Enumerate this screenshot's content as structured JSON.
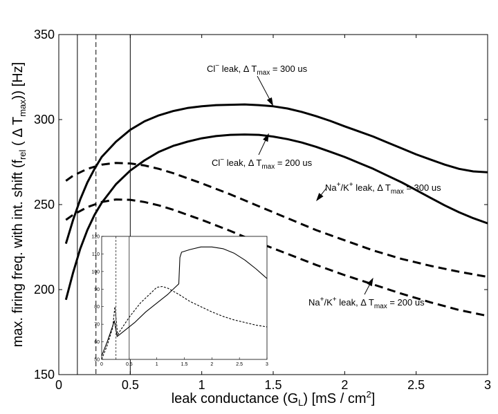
{
  "chart_data": {
    "type": "line",
    "xlabel": "leak conductance (G_L) [mS / cm^2]",
    "ylabel": "max. firing freq. with int. shift (f_rel ( Δ T_max)) [Hz]",
    "xlim": [
      0,
      3
    ],
    "ylim": [
      150,
      350
    ],
    "x_ticks": [
      "0",
      "0.5",
      "1",
      "1.5",
      "2",
      "2.5",
      "3"
    ],
    "y_ticks": [
      "150",
      "200",
      "250",
      "300",
      "350"
    ],
    "vertical_markers": [
      {
        "x": 0.13,
        "style": "solid"
      },
      {
        "x": 0.26,
        "style": "dashed"
      },
      {
        "x": 0.5,
        "style": "solid"
      }
    ],
    "series": [
      {
        "name": "Cl- leak, ΔT_max = 300 us",
        "style": "solid",
        "x": [
          0.05,
          0.1,
          0.15,
          0.2,
          0.25,
          0.3,
          0.4,
          0.5,
          0.6,
          0.7,
          0.8,
          0.9,
          1.0,
          1.1,
          1.2,
          1.3,
          1.4,
          1.5,
          1.6,
          1.7,
          1.8,
          1.9,
          2.0,
          2.1,
          2.2,
          2.3,
          2.4,
          2.5,
          2.6,
          2.7,
          2.8,
          2.9,
          3.0
        ],
        "y": [
          227,
          241,
          253,
          263,
          271,
          278,
          287,
          294,
          299,
          302.5,
          305,
          306.8,
          307.8,
          308.5,
          308.7,
          308.9,
          308.5,
          307.8,
          306.5,
          304.5,
          302,
          299.2,
          296,
          293,
          290,
          286.5,
          283,
          279.5,
          276.5,
          273.5,
          271,
          269.5,
          269
        ]
      },
      {
        "name": "Cl- leak, ΔT_max = 200 us",
        "style": "solid",
        "x": [
          0.05,
          0.1,
          0.15,
          0.2,
          0.25,
          0.3,
          0.4,
          0.5,
          0.6,
          0.7,
          0.8,
          0.9,
          1.0,
          1.1,
          1.2,
          1.3,
          1.4,
          1.5,
          1.6,
          1.7,
          1.8,
          1.9,
          2.0,
          2.1,
          2.2,
          2.3,
          2.4,
          2.5,
          2.6,
          2.7,
          2.8,
          2.9,
          3.0
        ],
        "y": [
          194,
          210,
          224,
          235,
          244,
          251,
          262,
          270,
          276,
          281,
          284.5,
          287,
          289,
          290.3,
          291,
          291.2,
          291,
          290,
          288.5,
          286.5,
          284,
          281,
          278,
          274.5,
          271,
          267,
          263,
          258.5,
          254,
          249.5,
          245.5,
          242,
          239
        ]
      },
      {
        "name": "Na+/K+ leak, ΔT_max = 300 us",
        "style": "dashed",
        "x": [
          0.05,
          0.1,
          0.2,
          0.3,
          0.4,
          0.5,
          0.6,
          0.7,
          0.8,
          0.9,
          1.0,
          1.2,
          1.4,
          1.6,
          1.8,
          2.0,
          2.2,
          2.4,
          2.6,
          2.8,
          3.0
        ],
        "y": [
          264,
          267,
          271,
          273.5,
          274.5,
          274.2,
          273,
          271,
          268.5,
          265.5,
          262.5,
          256,
          249,
          242,
          235,
          229,
          223,
          218,
          214,
          210.5,
          207.5
        ]
      },
      {
        "name": "Na+/K+ leak, ΔT_max = 200 us",
        "style": "dashed",
        "x": [
          0.05,
          0.1,
          0.2,
          0.3,
          0.4,
          0.5,
          0.6,
          0.7,
          0.8,
          0.9,
          1.0,
          1.2,
          1.4,
          1.6,
          1.8,
          2.0,
          2.2,
          2.4,
          2.6,
          2.8,
          3.0
        ],
        "y": [
          241,
          244,
          248.5,
          251.5,
          253,
          252.8,
          251.5,
          249.5,
          247,
          244,
          241,
          234.5,
          227.5,
          221,
          214.5,
          208.5,
          203,
          197.5,
          192.5,
          188,
          184.5
        ]
      }
    ],
    "annotations": [
      {
        "base": "Cl",
        "sup": "−",
        "mid": " leak, Δ T",
        "sub": "max",
        "tail": " = 300 us",
        "point": [
          1.5,
          308
        ]
      },
      {
        "base": "Cl",
        "sup": "−",
        "mid": " leak, Δ T",
        "sub": "max",
        "tail": " = 200 us",
        "point": [
          1.47,
          292
        ]
      },
      {
        "base": "Na",
        "sup": "+",
        "mid": "/K",
        "sup2": "+",
        "mid2": " leak, Δ T",
        "sub": "max",
        "tail": " = 300 us",
        "point": [
          1.8,
          252
        ]
      },
      {
        "base": "Na",
        "sup": "+",
        "mid": "/K",
        "sup2": "+",
        "mid2": " leak, Δ T",
        "sub": "max",
        "tail": " = 200 us",
        "point": [
          2.2,
          207
        ]
      }
    ],
    "inset": {
      "xlim": [
        0,
        3
      ],
      "ylim": [
        50,
        120
      ],
      "x_ticks": [
        "0",
        "0.5",
        "1",
        "1.5",
        "2",
        "2.5",
        "3"
      ],
      "y_ticks": [
        "50",
        "60",
        "70",
        "80",
        "90",
        "100",
        "110",
        "120"
      ],
      "vertical_markers": [
        {
          "x": 0.26,
          "style": "dashed"
        },
        {
          "x": 0.5,
          "style": "solid"
        }
      ],
      "series": [
        {
          "style": "solid",
          "x": [
            0.0,
            0.1,
            0.2,
            0.23,
            0.28,
            0.4,
            0.6,
            0.8,
            1.0,
            1.2,
            1.4,
            1.42,
            1.45,
            1.6,
            1.8,
            2.0,
            2.2,
            2.4,
            2.6,
            2.8,
            3.0
          ],
          "y": [
            52,
            60,
            69,
            72,
            63,
            66,
            71,
            77,
            82,
            87,
            93,
            108,
            111,
            112.5,
            114,
            114,
            113,
            110.5,
            106.5,
            101.5,
            96
          ]
        },
        {
          "style": "dashed",
          "x": [
            0.0,
            0.1,
            0.2,
            0.24,
            0.29,
            0.35,
            0.5,
            0.7,
            0.9,
            1.0,
            1.1,
            1.2,
            1.4,
            1.6,
            1.8,
            2.0,
            2.2,
            2.4,
            2.6,
            2.8,
            3.0
          ],
          "y": [
            50,
            58,
            68,
            80,
            64,
            67,
            74,
            82,
            88,
            91,
            91.5,
            90.5,
            87,
            83,
            80,
            77,
            74.5,
            72.5,
            71,
            69.5,
            68.5
          ]
        }
      ]
    }
  }
}
